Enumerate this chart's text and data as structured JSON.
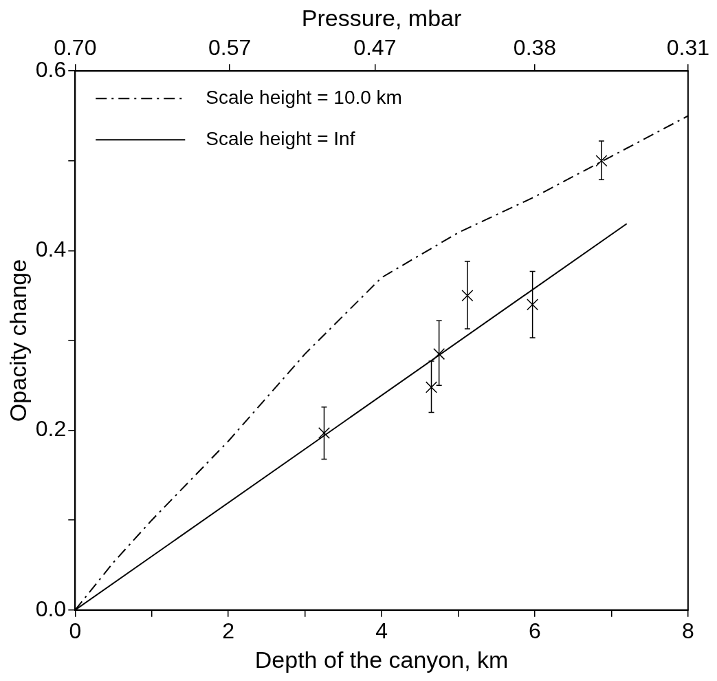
{
  "chart_data": {
    "type": "scatter",
    "xlabel": "Depth of the canyon, km",
    "ylabel": "Opacity change",
    "x2label": "Pressure, mbar",
    "xlim": [
      0,
      8
    ],
    "xticks": [
      0,
      {
        "value": 1,
        "label": null
      },
      2,
      {
        "value": 3,
        "label": null
      },
      4,
      {
        "value": 5,
        "label": null
      },
      6,
      {
        "value": 7,
        "label": null
      },
      8
    ],
    "x2lim": [
      0.7,
      0.31
    ],
    "x2ticks": [
      {
        "value": 0.7,
        "label": "0.70"
      },
      0.57,
      0.47,
      0.38,
      0.31
    ],
    "log": "x2",
    "ylim": [
      0,
      0.6
    ],
    "yticks": [
      {
        "value": 0,
        "label": "0.0"
      },
      {
        "value": 0.1,
        "label": null
      },
      {
        "value": 0.2,
        "label": "0.2"
      },
      {
        "value": 0.3,
        "label": null
      },
      {
        "value": 0.4,
        "label": "0.4"
      },
      {
        "value": 0.5,
        "label": null
      },
      {
        "value": 0.6,
        "label": "0.6"
      }
    ],
    "grid": false,
    "legend": "top left",
    "series": [
      {
        "type": "line",
        "name": "Scale height = 10.0 km",
        "color": "#000000",
        "line_style": "dashed",
        "marker": "none",
        "x": [
          0,
          0.5,
          1,
          2,
          3,
          4,
          5,
          6,
          7,
          8
        ],
        "values": [
          0,
          0.053,
          0.1,
          0.188,
          0.285,
          0.37,
          0.42,
          0.46,
          0.505,
          0.55
        ]
      },
      {
        "type": "line",
        "name": "Scale height = Inf",
        "color": "#000000",
        "line_style": "solid",
        "marker": "none",
        "x": [
          0,
          7.2
        ],
        "values": [
          0,
          0.43
        ]
      },
      {
        "color": "#000000",
        "marker": "cross",
        "x": [
          3.25,
          4.65,
          4.75,
          5.12,
          5.97,
          6.87
        ],
        "values": [
          0.197,
          0.248,
          0.285,
          0.35,
          0.34,
          0.5
        ],
        "errors": [
          [
            0.168,
            0.226
          ],
          [
            0.22,
            0.277
          ],
          [
            0.25,
            0.322
          ],
          [
            0.313,
            0.388
          ],
          [
            0.303,
            0.377
          ],
          [
            0.479,
            0.522
          ]
        ]
      }
    ]
  }
}
